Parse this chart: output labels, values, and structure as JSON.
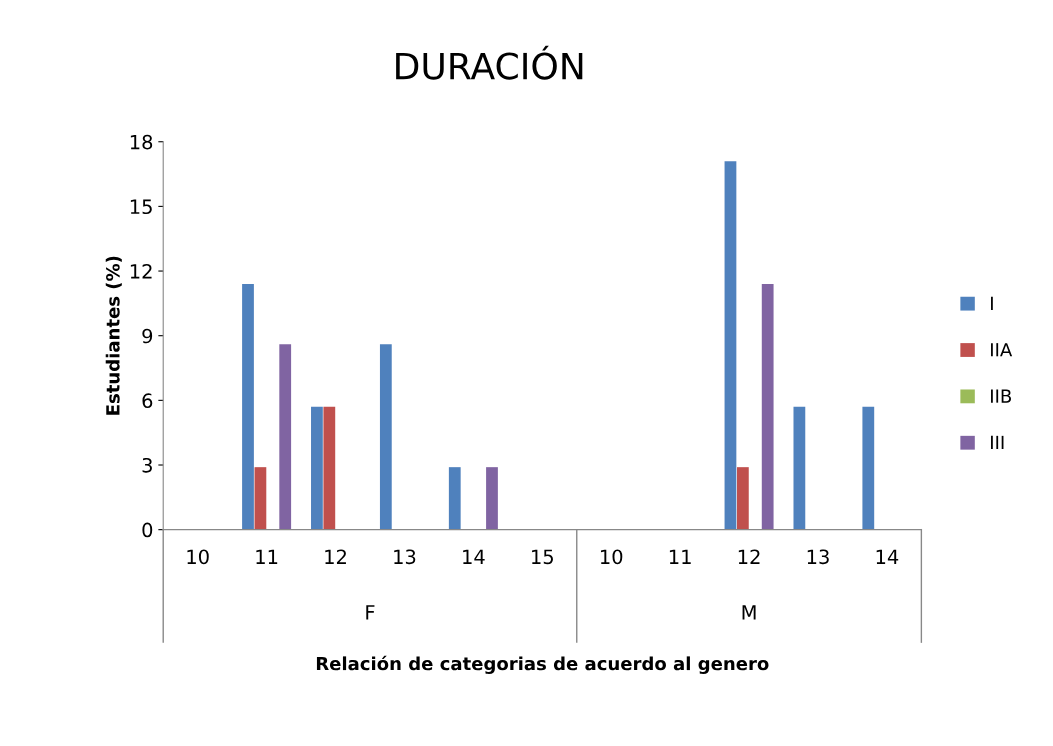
{
  "chart_data": {
    "type": "bar",
    "title": "DURACIÓN",
    "ylabel": "Estudiantes (%)",
    "categories": [
      "10",
      "11",
      "12",
      "13",
      "14",
      "15",
      "10",
      "11",
      "12",
      "13",
      "14"
    ],
    "annotations": [
      "F",
      "M",
      "Relación de categorias de acuerdo al genero"
    ],
    "series": [
      {
        "name": "I",
        "color": "#4f81bd",
        "values": [
          0,
          11.4,
          5.7,
          8.6,
          2.9,
          0,
          0,
          0,
          17.1,
          5.7,
          5.7
        ]
      },
      {
        "name": "IIA",
        "color": "#c0504d",
        "values": [
          0,
          2.9,
          5.7,
          0,
          0,
          0,
          0,
          0,
          2.9,
          0,
          0
        ]
      },
      {
        "name": "IIB",
        "color": "#9bbb59",
        "values": [
          0,
          0,
          0,
          0,
          0,
          0,
          0,
          0,
          0,
          0,
          0
        ]
      },
      {
        "name": "III",
        "color": "#8064a2",
        "values": [
          0,
          8.6,
          0,
          0,
          2.9,
          0,
          0,
          0,
          11.4,
          0,
          0
        ]
      }
    ],
    "ylim": [
      0,
      18
    ],
    "yticks": [
      0,
      3,
      6,
      9,
      12,
      15,
      18
    ],
    "grid": false,
    "legend": "right"
  }
}
